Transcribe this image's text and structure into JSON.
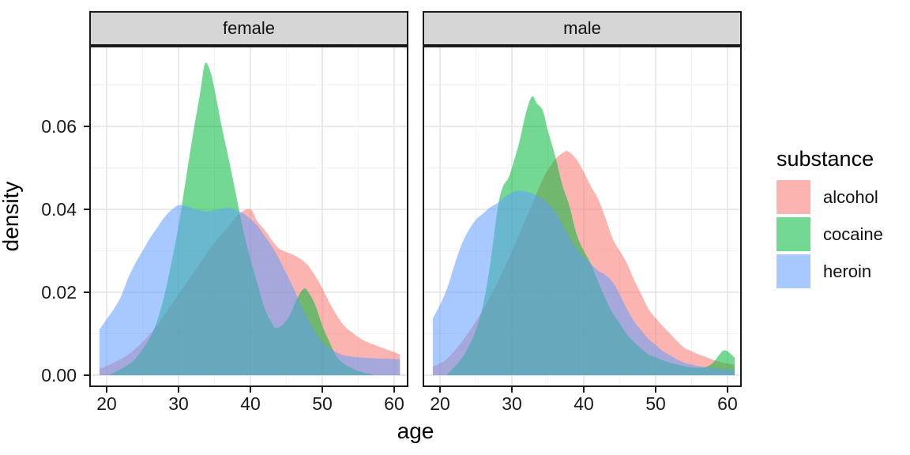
{
  "figure": {
    "background": "#FFFFFF"
  },
  "chart_data": {
    "type": "area",
    "kind": "faceted-kernel-density",
    "title": "",
    "xlabel": "age",
    "ylabel": "density",
    "legend_title": "substance",
    "legend_position": "right",
    "grid": {
      "major_color": "#E4E4E4",
      "minor_color": "#F2F2F2",
      "major_on": true,
      "minor_on": true
    },
    "strip": {
      "fill": "#D6D6D6",
      "border": "#1A1A1A"
    },
    "panel_border": "#1A1A1A",
    "x_ticks": [
      20,
      30,
      40,
      50,
      60
    ],
    "x_minor": [
      25,
      35,
      45,
      55
    ],
    "y_ticks": [
      {
        "label": "0.00",
        "value": 0.0
      },
      {
        "label": "0.02",
        "value": 0.02
      },
      {
        "label": "0.04",
        "value": 0.04
      },
      {
        "label": "0.06",
        "value": 0.06
      }
    ],
    "y_minor": [
      0.01,
      0.03,
      0.05,
      0.07
    ],
    "xlim": [
      17.58,
      61.98
    ],
    "ylim": [
      -0.00286,
      0.07943
    ],
    "series_order": [
      "alcohol",
      "cocaine",
      "heroin"
    ],
    "colors": {
      "alcohol": "#F8766D",
      "cocaine": "#00BA38",
      "heroin": "#619CFF"
    },
    "fill_alpha": 0.55,
    "facets": [
      {
        "label": "female",
        "series": [
          {
            "name": "alcohol",
            "points": [
              [
                19,
                0.0015
              ],
              [
                21,
                0.003
              ],
              [
                23,
                0.005
              ],
              [
                25,
                0.008
              ],
              [
                27,
                0.012
              ],
              [
                29,
                0.017
              ],
              [
                31,
                0.022
              ],
              [
                33,
                0.027
              ],
              [
                35,
                0.032
              ],
              [
                37,
                0.036
              ],
              [
                38.5,
                0.039
              ],
              [
                40,
                0.04
              ],
              [
                41,
                0.037
              ],
              [
                42,
                0.035
              ],
              [
                43,
                0.0325
              ],
              [
                44,
                0.0305
              ],
              [
                45,
                0.0297
              ],
              [
                46,
                0.029
              ],
              [
                47,
                0.028
              ],
              [
                48,
                0.0265
              ],
              [
                49,
                0.024
              ],
              [
                50,
                0.021
              ],
              [
                51,
                0.0175
              ],
              [
                52,
                0.0145
              ],
              [
                53,
                0.012
              ],
              [
                54,
                0.0105
              ],
              [
                55,
                0.0092
              ],
              [
                56,
                0.0082
              ],
              [
                57,
                0.0075
              ],
              [
                58,
                0.0068
              ],
              [
                59,
                0.0062
              ],
              [
                60,
                0.0056
              ],
              [
                60.8,
                0.005
              ]
            ]
          },
          {
            "name": "cocaine",
            "points": [
              [
                20.5,
                0.0002
              ],
              [
                22,
                0.0015
              ],
              [
                24,
                0.004
              ],
              [
                26,
                0.009
              ],
              [
                27,
                0.013
              ],
              [
                28,
                0.019
              ],
              [
                29,
                0.027
              ],
              [
                30,
                0.036
              ],
              [
                31,
                0.047
              ],
              [
                32,
                0.058
              ],
              [
                33,
                0.068
              ],
              [
                33.7,
                0.0752
              ],
              [
                34.5,
                0.0728
              ],
              [
                35,
                0.069
              ],
              [
                36,
                0.06
              ],
              [
                37,
                0.052
              ],
              [
                38,
                0.0435
              ],
              [
                39,
                0.035
              ],
              [
                40,
                0.028
              ],
              [
                41,
                0.022
              ],
              [
                42,
                0.016
              ],
              [
                43,
                0.0125
              ],
              [
                43.5,
                0.0114
              ],
              [
                44.5,
                0.0122
              ],
              [
                45.5,
                0.0145
              ],
              [
                46.5,
                0.0185
              ],
              [
                47.4,
                0.0208
              ],
              [
                48,
                0.0202
              ],
              [
                49,
                0.017
              ],
              [
                50,
                0.012
              ],
              [
                51,
                0.008
              ],
              [
                52,
                0.0045
              ],
              [
                53,
                0.0028
              ],
              [
                54,
                0.0018
              ],
              [
                55,
                0.001
              ],
              [
                56,
                0.0005
              ],
              [
                57,
                0.0002
              ]
            ]
          },
          {
            "name": "heroin",
            "points": [
              [
                19,
                0.011
              ],
              [
                20,
                0.0135
              ],
              [
                21,
                0.016
              ],
              [
                22,
                0.019
              ],
              [
                23,
                0.0235
              ],
              [
                24,
                0.027
              ],
              [
                25,
                0.03
              ],
              [
                26,
                0.033
              ],
              [
                27,
                0.0355
              ],
              [
                28,
                0.038
              ],
              [
                29,
                0.0398
              ],
              [
                30,
                0.041
              ],
              [
                31,
                0.0408
              ],
              [
                32,
                0.0402
              ],
              [
                33,
                0.0398
              ],
              [
                34,
                0.0395
              ],
              [
                35,
                0.0398
              ],
              [
                36,
                0.0401
              ],
              [
                37,
                0.0403
              ],
              [
                38,
                0.0398
              ],
              [
                39,
                0.039
              ],
              [
                40,
                0.0377
              ],
              [
                41,
                0.036
              ],
              [
                42,
                0.0335
              ],
              [
                43,
                0.031
              ],
              [
                44,
                0.028
              ],
              [
                45,
                0.0245
              ],
              [
                46,
                0.021
              ],
              [
                47,
                0.017
              ],
              [
                48,
                0.0135
              ],
              [
                49,
                0.0105
              ],
              [
                50,
                0.008
              ],
              [
                51,
                0.0065
              ],
              [
                52,
                0.0055
              ],
              [
                53,
                0.0048
              ],
              [
                54,
                0.0045
              ],
              [
                55,
                0.0043
              ],
              [
                56,
                0.0042
              ],
              [
                57,
                0.0041
              ],
              [
                58,
                0.004
              ],
              [
                59,
                0.004
              ],
              [
                60,
                0.0039
              ],
              [
                60.8,
                0.0038
              ]
            ]
          }
        ]
      },
      {
        "label": "male",
        "series": [
          {
            "name": "alcohol",
            "points": [
              [
                19,
                0.002
              ],
              [
                21,
                0.004
              ],
              [
                23,
                0.008
              ],
              [
                25,
                0.013
              ],
              [
                27,
                0.019
              ],
              [
                29,
                0.026
              ],
              [
                31,
                0.034
              ],
              [
                33,
                0.042
              ],
              [
                34.5,
                0.048
              ],
              [
                36,
                0.052
              ],
              [
                37,
                0.0535
              ],
              [
                37.8,
                0.054
              ],
              [
                39,
                0.052
              ],
              [
                40,
                0.049
              ],
              [
                41,
                0.0455
              ],
              [
                42,
                0.0425
              ],
              [
                43,
                0.038
              ],
              [
                44,
                0.033
              ],
              [
                45,
                0.03
              ],
              [
                46,
                0.027
              ],
              [
                47,
                0.023
              ],
              [
                48,
                0.0195
              ],
              [
                49,
                0.016
              ],
              [
                50,
                0.0138
              ],
              [
                51,
                0.0118
              ],
              [
                52,
                0.01
              ],
              [
                53,
                0.0082
              ],
              [
                54,
                0.0066
              ],
              [
                55,
                0.0058
              ],
              [
                56,
                0.005
              ],
              [
                57,
                0.0044
              ],
              [
                58,
                0.0037
              ],
              [
                59,
                0.0032
              ],
              [
                60,
                0.0028
              ],
              [
                61,
                0.0025
              ]
            ]
          },
          {
            "name": "cocaine",
            "points": [
              [
                21,
                0.0002
              ],
              [
                22,
                0.002
              ],
              [
                23,
                0.004
              ],
              [
                24,
                0.007
              ],
              [
                25,
                0.011
              ],
              [
                26,
                0.017
              ],
              [
                27,
                0.027
              ],
              [
                28,
                0.04
              ],
              [
                28.7,
                0.0452
              ],
              [
                29.5,
                0.0475
              ],
              [
                30,
                0.05
              ],
              [
                31,
                0.056
              ],
              [
                32,
                0.0635
              ],
              [
                32.8,
                0.0672
              ],
              [
                33.5,
                0.0655
              ],
              [
                34.3,
                0.0638
              ],
              [
                35,
                0.059
              ],
              [
                36,
                0.053
              ],
              [
                37,
                0.046
              ],
              [
                38,
                0.0408
              ],
              [
                39,
                0.034
              ],
              [
                40,
                0.03
              ],
              [
                41,
                0.0268
              ],
              [
                42,
                0.0225
              ],
              [
                43,
                0.0185
              ],
              [
                44,
                0.015
              ],
              [
                45,
                0.0125
              ],
              [
                46,
                0.0098
              ],
              [
                47,
                0.008
              ],
              [
                48,
                0.0064
              ],
              [
                49,
                0.005
              ],
              [
                50,
                0.0043
              ],
              [
                51,
                0.0036
              ],
              [
                52,
                0.003
              ],
              [
                53,
                0.0026
              ],
              [
                54,
                0.0022
              ],
              [
                55,
                0.0019
              ],
              [
                56,
                0.0018
              ],
              [
                57,
                0.002
              ],
              [
                58,
                0.003
              ],
              [
                58.8,
                0.0048
              ],
              [
                59.5,
                0.006
              ],
              [
                60.2,
                0.0055
              ],
              [
                61,
                0.0042
              ]
            ]
          },
          {
            "name": "heroin",
            "points": [
              [
                19,
                0.0137
              ],
              [
                20,
                0.017
              ],
              [
                21,
                0.021
              ],
              [
                22,
                0.0265
              ],
              [
                23,
                0.0315
              ],
              [
                24,
                0.035
              ],
              [
                25,
                0.0375
              ],
              [
                26,
                0.039
              ],
              [
                27,
                0.0405
              ],
              [
                28,
                0.0415
              ],
              [
                29,
                0.043
              ],
              [
                30,
                0.044
              ],
              [
                31,
                0.0445
              ],
              [
                32,
                0.0443
              ],
              [
                33,
                0.0437
              ],
              [
                34,
                0.0428
              ],
              [
                35,
                0.0415
              ],
              [
                36,
                0.0395
              ],
              [
                37,
                0.0365
              ],
              [
                38,
                0.0333
              ],
              [
                39,
                0.0305
              ],
              [
                40,
                0.0285
              ],
              [
                41,
                0.0268
              ],
              [
                42,
                0.0252
              ],
              [
                43,
                0.0242
              ],
              [
                44,
                0.0225
              ],
              [
                45,
                0.0195
              ],
              [
                46,
                0.016
              ],
              [
                47,
                0.013
              ],
              [
                48,
                0.0108
              ],
              [
                49,
                0.0087
              ],
              [
                50,
                0.0073
              ],
              [
                51,
                0.0058
              ],
              [
                52,
                0.0048
              ],
              [
                53,
                0.0038
              ],
              [
                54,
                0.003
              ],
              [
                55,
                0.0026
              ],
              [
                56,
                0.0022
              ],
              [
                57,
                0.0019
              ],
              [
                58,
                0.0017
              ],
              [
                59,
                0.0015
              ],
              [
                60,
                0.0013
              ],
              [
                61,
                0.0011
              ]
            ]
          }
        ]
      }
    ]
  }
}
